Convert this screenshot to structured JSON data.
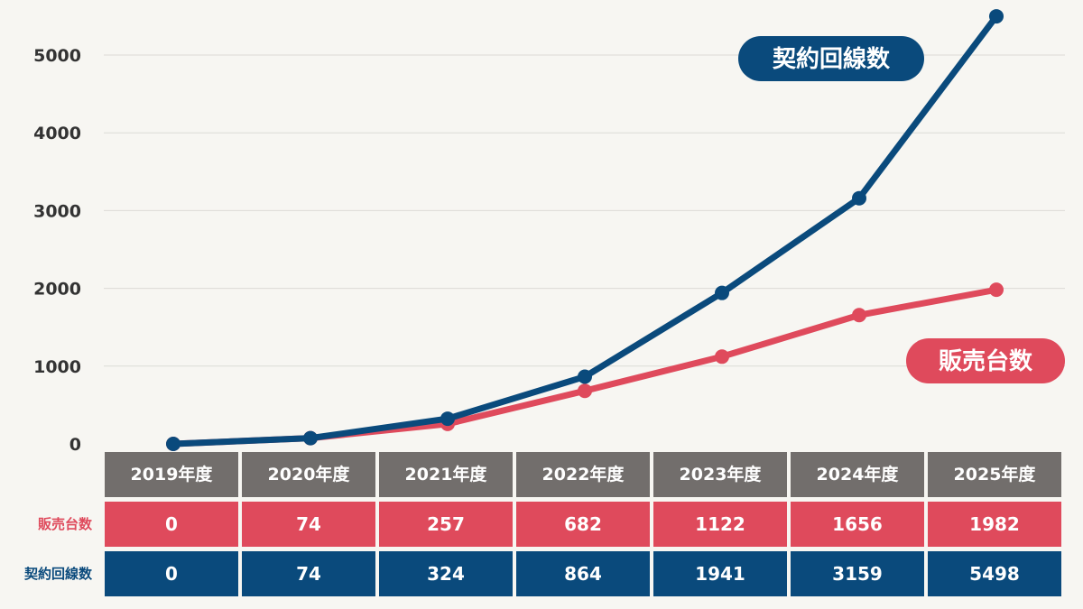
{
  "chart_data": {
    "type": "line",
    "categories": [
      "2019年度",
      "2020年度",
      "2021年度",
      "2022年度",
      "2023年度",
      "2024年度",
      "2025年度"
    ],
    "series": [
      {
        "name": "販売台数",
        "color": "#df4a5c",
        "values": [
          0,
          74,
          257,
          682,
          1122,
          1656,
          1982
        ]
      },
      {
        "name": "契約回線数",
        "color": "#0a4a7c",
        "values": [
          0,
          74,
          324,
          864,
          1941,
          3159,
          5498
        ]
      }
    ],
    "y_ticks": [
      "0",
      "1000",
      "2000",
      "3000",
      "4000",
      "5000"
    ],
    "ylim": [
      0,
      5500
    ],
    "grid": true,
    "xlabel": "",
    "ylabel": ""
  },
  "table": {
    "headers": [
      "2019年度",
      "2020年度",
      "2021年度",
      "2022年度",
      "2023年度",
      "2024年度",
      "2025年度"
    ],
    "rows": [
      {
        "label": "販売台数",
        "color": "#df4a5c",
        "cells": [
          "0",
          "74",
          "257",
          "682",
          "1122",
          "1656",
          "1982"
        ]
      },
      {
        "label": "契約回線数",
        "color": "#0a4a7c",
        "cells": [
          "0",
          "74",
          "324",
          "864",
          "1941",
          "3159",
          "5498"
        ]
      }
    ]
  }
}
